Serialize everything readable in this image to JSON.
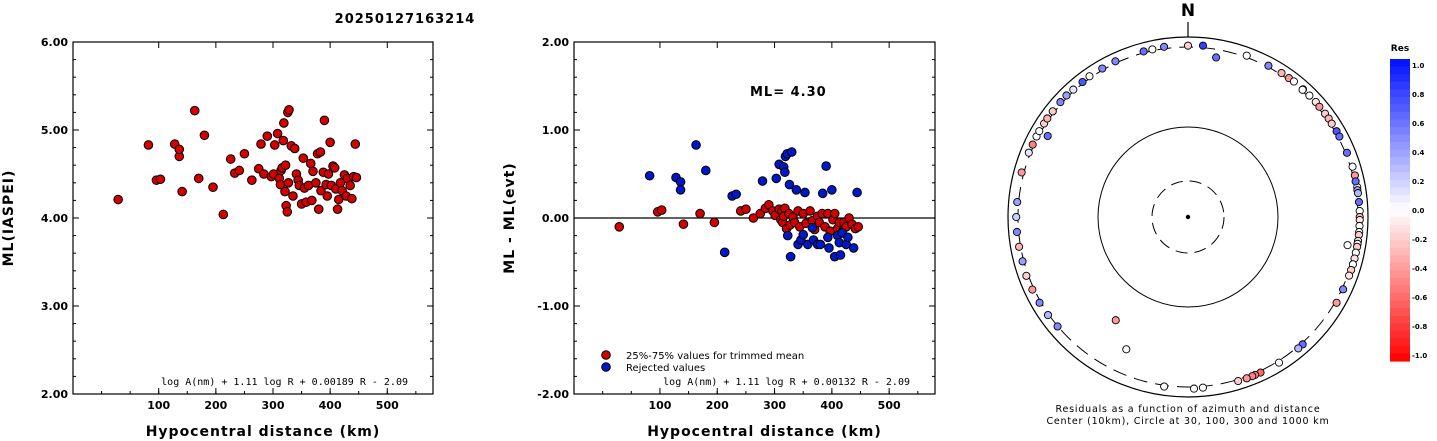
{
  "title": "20250127163214",
  "chart_data": [
    {
      "type": "scatter",
      "xlabel": "Hypocentral distance (km)",
      "ylabel": "ML(IASPEI)",
      "xlim": [
        -50,
        580
      ],
      "ylim": [
        2.0,
        6.0
      ],
      "xticks": [
        "100",
        "200",
        "300",
        "400",
        "500"
      ],
      "yticks": [
        "2.00",
        "3.00",
        "4.00",
        "5.00",
        "6.00"
      ],
      "formula": "log A(nm) + 1.11 log R + 0.00189 R - 2.09",
      "point_color": "#d40000",
      "points": [
        [
          29,
          4.21
        ],
        [
          82,
          4.83
        ],
        [
          96,
          4.43
        ],
        [
          103,
          4.44
        ],
        [
          128,
          4.84
        ],
        [
          136,
          4.7
        ],
        [
          136,
          4.78
        ],
        [
          141,
          4.3
        ],
        [
          163,
          5.22
        ],
        [
          170,
          4.45
        ],
        [
          180,
          4.94
        ],
        [
          195,
          4.35
        ],
        [
          213,
          4.04
        ],
        [
          226,
          4.67
        ],
        [
          233,
          4.51
        ],
        [
          241,
          4.54
        ],
        [
          250,
          4.73
        ],
        [
          263,
          4.43
        ],
        [
          275,
          4.56
        ],
        [
          279,
          4.84
        ],
        [
          284,
          4.5
        ],
        [
          290,
          4.93
        ],
        [
          297,
          4.47
        ],
        [
          301,
          4.5
        ],
        [
          303,
          4.83
        ],
        [
          308,
          4.96
        ],
        [
          311,
          4.45
        ],
        [
          313,
          4.38
        ],
        [
          314,
          4.54
        ],
        [
          316,
          4.57
        ],
        [
          318,
          4.88
        ],
        [
          319,
          5.08
        ],
        [
          321,
          4.3
        ],
        [
          322,
          4.6
        ],
        [
          323,
          4.14
        ],
        [
          325,
          4.07
        ],
        [
          326,
          5.2
        ],
        [
          327,
          4.4
        ],
        [
          328,
          5.23
        ],
        [
          332,
          4.82
        ],
        [
          335,
          4.25
        ],
        [
          338,
          4.79
        ],
        [
          341,
          4.5
        ],
        [
          344,
          4.43
        ],
        [
          346,
          4.37
        ],
        [
          350,
          4.16
        ],
        [
          353,
          4.68
        ],
        [
          355,
          4.34
        ],
        [
          358,
          4.18
        ],
        [
          362,
          4.37
        ],
        [
          366,
          4.62
        ],
        [
          368,
          4.2
        ],
        [
          370,
          4.53
        ],
        [
          375,
          4.4
        ],
        [
          378,
          4.73
        ],
        [
          380,
          4.1
        ],
        [
          383,
          4.75
        ],
        [
          384,
          4.31
        ],
        [
          388,
          4.52
        ],
        [
          390,
          5.11
        ],
        [
          393,
          4.38
        ],
        [
          395,
          4.25
        ],
        [
          397,
          4.5
        ],
        [
          400,
          4.86
        ],
        [
          402,
          4.37
        ],
        [
          405,
          4.59
        ],
        [
          408,
          4.57
        ],
        [
          410,
          4.33
        ],
        [
          413,
          4.1
        ],
        [
          415,
          4.21
        ],
        [
          418,
          4.4
        ],
        [
          421,
          4.31
        ],
        [
          425,
          4.49
        ],
        [
          428,
          4.25
        ],
        [
          430,
          4.45
        ],
        [
          435,
          4.37
        ],
        [
          438,
          4.22
        ],
        [
          441,
          4.47
        ],
        [
          444,
          4.84
        ],
        [
          446,
          4.46
        ]
      ]
    },
    {
      "type": "scatter",
      "xlabel": "Hypocentral distance (km)",
      "ylabel": "ML - ML(evt)",
      "xlim": [
        -50,
        580
      ],
      "ylim": [
        -2.0,
        2.0
      ],
      "xticks": [
        "100",
        "200",
        "300",
        "400",
        "500"
      ],
      "yticks": [
        "-2.00",
        "-1.00",
        "0.00",
        "1.00",
        "2.00"
      ],
      "annotation": "ML= 4.30",
      "formula": "log A(nm) + 1.11 log R + 0.00132 R - 2.09",
      "legend": [
        {
          "label": "25%-75% values for trimmed mean",
          "color": "#d40000"
        },
        {
          "label": "Rejected values",
          "color": "#0018c8"
        }
      ],
      "series": [
        {
          "name": "25%-75% values for trimmed mean",
          "color": "#d40000",
          "points": [
            [
              29,
              -0.1
            ],
            [
              96,
              0.07
            ],
            [
              103,
              0.09
            ],
            [
              141,
              -0.07
            ],
            [
              170,
              0.05
            ],
            [
              195,
              -0.05
            ],
            [
              241,
              0.08
            ],
            [
              250,
              0.1
            ],
            [
              263,
              0.0
            ],
            [
              275,
              0.05
            ],
            [
              284,
              0.11
            ],
            [
              290,
              0.15
            ],
            [
              297,
              0.08
            ],
            [
              301,
              0.03
            ],
            [
              308,
              0.1
            ],
            [
              311,
              -0.02
            ],
            [
              313,
              0.08
            ],
            [
              314,
              -0.05
            ],
            [
              316,
              0.02
            ],
            [
              318,
              0.11
            ],
            [
              321,
              -0.12
            ],
            [
              325,
              0.05
            ],
            [
              327,
              -0.08
            ],
            [
              332,
              0.01
            ],
            [
              335,
              -0.05
            ],
            [
              341,
              0.08
            ],
            [
              344,
              -0.1
            ],
            [
              350,
              0.05
            ],
            [
              355,
              -0.06
            ],
            [
              362,
              0.08
            ],
            [
              366,
              -0.03
            ],
            [
              370,
              -0.13
            ],
            [
              375,
              0.02
            ],
            [
              378,
              -0.05
            ],
            [
              383,
              0.05
            ],
            [
              388,
              -0.1
            ],
            [
              393,
              0.05
            ],
            [
              397,
              -0.15
            ],
            [
              402,
              -0.02
            ],
            [
              405,
              0.05
            ],
            [
              410,
              -0.12
            ],
            [
              413,
              -0.05
            ],
            [
              418,
              -0.16
            ],
            [
              421,
              -0.05
            ],
            [
              425,
              -0.1
            ],
            [
              430,
              0.0
            ],
            [
              435,
              -0.07
            ],
            [
              441,
              -0.12
            ],
            [
              446,
              -0.1
            ]
          ]
        },
        {
          "name": "Rejected values",
          "color": "#0018c8",
          "points": [
            [
              82,
              0.48
            ],
            [
              128,
              0.46
            ],
            [
              136,
              0.41
            ],
            [
              136,
              0.32
            ],
            [
              163,
              0.83
            ],
            [
              180,
              0.54
            ],
            [
              213,
              -0.39
            ],
            [
              226,
              0.25
            ],
            [
              233,
              0.27
            ],
            [
              279,
              0.42
            ],
            [
              303,
              0.45
            ],
            [
              308,
              0.61
            ],
            [
              316,
              0.58
            ],
            [
              318,
              0.52
            ],
            [
              319,
              0.7
            ],
            [
              322,
              0.73
            ],
            [
              323,
              -0.2
            ],
            [
              326,
              0.38
            ],
            [
              328,
              -0.44
            ],
            [
              330,
              0.75
            ],
            [
              338,
              0.32
            ],
            [
              341,
              -0.3
            ],
            [
              346,
              -0.25
            ],
            [
              350,
              -0.19
            ],
            [
              353,
              0.29
            ],
            [
              358,
              -0.3
            ],
            [
              366,
              -0.11
            ],
            [
              368,
              -0.25
            ],
            [
              375,
              -0.3
            ],
            [
              380,
              -0.3
            ],
            [
              384,
              0.28
            ],
            [
              390,
              0.59
            ],
            [
              393,
              -0.22
            ],
            [
              395,
              -0.34
            ],
            [
              400,
              0.32
            ],
            [
              405,
              -0.44
            ],
            [
              410,
              -0.2
            ],
            [
              413,
              -0.28
            ],
            [
              415,
              -0.42
            ],
            [
              418,
              -0.17
            ],
            [
              425,
              -0.3
            ],
            [
              428,
              -0.22
            ],
            [
              438,
              -0.34
            ],
            [
              444,
              0.29
            ]
          ]
        }
      ]
    },
    {
      "type": "scatter",
      "subtype": "polar",
      "north_label": "N",
      "caption_line1": "Residuals as a function of azimuth and distance",
      "caption_line2": "Center (10km), Circle at 30, 100, 300 and 1000 km",
      "colorbar_title": "Res",
      "colorbar_ticks": [
        "1.0",
        "0.8",
        "0.6",
        "0.4",
        "0.2",
        "0.0",
        "-0.2",
        "-0.4",
        "-0.6",
        "-0.8",
        "-1.0"
      ],
      "note": "points: [azimuth_deg, distance_km, residual]",
      "points": [
        [
          5,
          440,
          0.8
        ],
        [
          0,
          395,
          -0.2
        ],
        [
          20,
          420,
          0.0
        ],
        [
          28,
          395,
          0.5
        ],
        [
          33,
          420,
          -0.3
        ],
        [
          36,
          418,
          -0.4
        ],
        [
          38,
          440,
          0.0
        ],
        [
          42,
          430,
          -0.6
        ],
        [
          42,
          385,
          0.0
        ],
        [
          45,
          420,
          0.0
        ],
        [
          48,
          435,
          -0.1
        ],
        [
          50,
          405,
          -0.4
        ],
        [
          53,
          415,
          -0.2
        ],
        [
          55,
          420,
          -0.3
        ],
        [
          57,
          395,
          -0.2
        ],
        [
          60,
          410,
          0.7
        ],
        [
          62,
          400,
          0.6
        ],
        [
          68,
          400,
          0.6
        ],
        [
          73,
          445,
          0.0
        ],
        [
          76,
          440,
          -0.4
        ],
        [
          80,
          430,
          0.0
        ],
        [
          78,
          395,
          0.6
        ],
        [
          81,
          405,
          0.4
        ],
        [
          82,
          415,
          0.3
        ],
        [
          85,
          410,
          0.6
        ],
        [
          88,
          425,
          0.0
        ],
        [
          90,
          420,
          -0.3
        ],
        [
          91,
          424,
          -0.1
        ],
        [
          93,
          420,
          0.0
        ],
        [
          95,
          430,
          0.0
        ],
        [
          96,
          425,
          -0.2
        ],
        [
          98,
          420,
          -0.1
        ],
        [
          99,
          415,
          0.0
        ],
        [
          100,
          420,
          -0.2
        ],
        [
          102,
          410,
          0.0
        ],
        [
          104,
          415,
          -0.1
        ],
        [
          106,
          410,
          0.0
        ],
        [
          108,
          405,
          -0.2
        ],
        [
          110,
          400,
          -0.1
        ],
        [
          115,
          380,
          0.5
        ],
        [
          120,
          410,
          -0.4
        ],
        [
          138,
          395,
          0.6
        ],
        [
          140,
          408,
          0.3
        ],
        [
          148,
          420,
          0.0
        ],
        [
          155,
          415,
          -0.6
        ],
        [
          157,
          410,
          -0.5
        ],
        [
          158,
          415,
          -0.5
        ],
        [
          160,
          418,
          -0.4
        ],
        [
          163,
          405,
          -0.2
        ],
        [
          178,
          420,
          0.0
        ],
        [
          175,
          390,
          0.0
        ],
        [
          188,
          385,
          0.0
        ],
        [
          10,
          280,
          0.6
        ],
        [
          100,
          280,
          0.0
        ],
        [
          215,
          190,
          -0.4
        ],
        [
          205,
          240,
          0.0
        ],
        [
          230,
          320,
          0.5
        ],
        [
          235,
          365,
          0.3
        ],
        [
          240,
          400,
          0.5
        ],
        [
          245,
          420,
          -0.4
        ],
        [
          250,
          440,
          -0.2
        ],
        [
          255,
          390,
          0.4
        ],
        [
          260,
          405,
          -0.3
        ],
        [
          265,
          420,
          0.5
        ],
        [
          270,
          425,
          0.2
        ],
        [
          275,
          400,
          0.4
        ],
        [
          285,
          455,
          -0.4
        ],
        [
          292,
          420,
          0.1
        ],
        [
          295,
          395,
          -0.5
        ],
        [
          298,
          410,
          0.0
        ],
        [
          300,
          420,
          0.0
        ],
        [
          303,
          410,
          -0.2
        ],
        [
          305,
          425,
          -0.3
        ],
        [
          308,
          415,
          -0.2
        ],
        [
          312,
          420,
          0.5
        ],
        [
          315,
          430,
          0.4
        ],
        [
          318,
          400,
          0.1
        ],
        [
          322,
          390,
          0.7
        ],
        [
          325,
          425,
          0.0
        ],
        [
          330,
          400,
          0.5
        ],
        [
          335,
          425,
          0.5
        ],
        [
          345,
          400,
          0.6
        ],
        [
          348,
          395,
          0.0
        ],
        [
          352,
          430,
          0.5
        ],
        [
          300,
          280,
          0.6
        ]
      ]
    }
  ]
}
